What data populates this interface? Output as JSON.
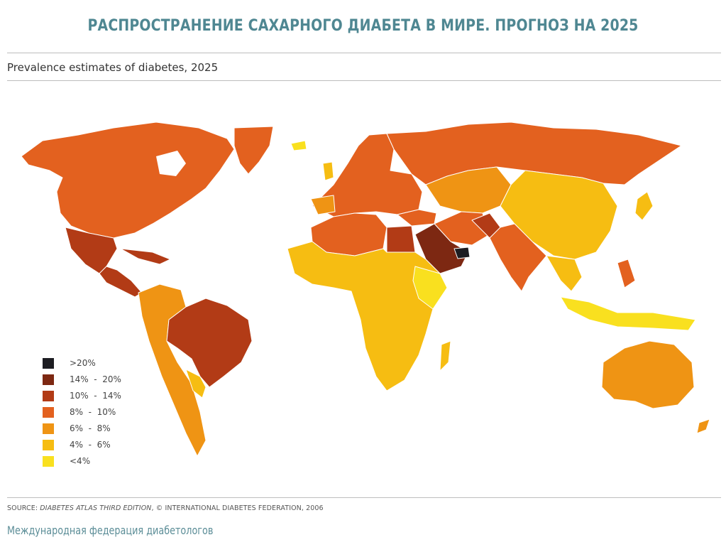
{
  "title": "РАСПРОСТРАНЕНИЕ САХАРНОГО ДИАБЕТА В МИРЕ. ПРОГНОЗ НА 2025",
  "subtitle": "Prevalence estimates of diabetes, 2025",
  "legend": [
    {
      "label": ">20%",
      "color": "#1d1d22"
    },
    {
      "label": "14%  -  20%",
      "color": "#7d2812"
    },
    {
      "label": "10%  -  14%",
      "color": "#b23b16"
    },
    {
      "label": "8%  -  10%",
      "color": "#e3611f"
    },
    {
      "label": "6%  -  8%",
      "color": "#ef9414"
    },
    {
      "label": "4%  -  6%",
      "color": "#f6bd12"
    },
    {
      "label": "<4%",
      "color": "#f9e01f"
    }
  ],
  "source": {
    "prefix": "SOURCE: ",
    "italic": "DIABETES ATLAS THIRD EDITION",
    "suffix": ", © INTERNATIONAL DIABETES FEDERATION, 2006"
  },
  "footer": "Международная федерация диабетологов",
  "regions": [
    {
      "name": "north-america",
      "level": "8%  -  10%"
    },
    {
      "name": "greenland",
      "level": "8%  -  10%"
    },
    {
      "name": "mexico",
      "level": "10%  -  14%"
    },
    {
      "name": "central-america",
      "level": "10%  -  14%"
    },
    {
      "name": "brazil",
      "level": "10%  -  14%"
    },
    {
      "name": "south-america-west",
      "level": "6%  -  8%"
    },
    {
      "name": "europe",
      "level": "8%  -  10%"
    },
    {
      "name": "russia",
      "level": "8%  -  10%"
    },
    {
      "name": "north-africa",
      "level": "8%  -  10%"
    },
    {
      "name": "egypt",
      "level": "10%  -  14%"
    },
    {
      "name": "saudi-arabia",
      "level": "14%  -  20%"
    },
    {
      "name": "uae",
      "level": ">20%"
    },
    {
      "name": "sub-saharan-africa",
      "level": "4%  -  6%"
    },
    {
      "name": "east-africa",
      "level": "<4%"
    },
    {
      "name": "central-asia",
      "level": "6%  -  8%"
    },
    {
      "name": "india",
      "level": "8%  -  10%"
    },
    {
      "name": "china",
      "level": "4%  -  6%"
    },
    {
      "name": "southeast-asia",
      "level": "<4%"
    },
    {
      "name": "australia",
      "level": "6%  -  8%"
    }
  ]
}
